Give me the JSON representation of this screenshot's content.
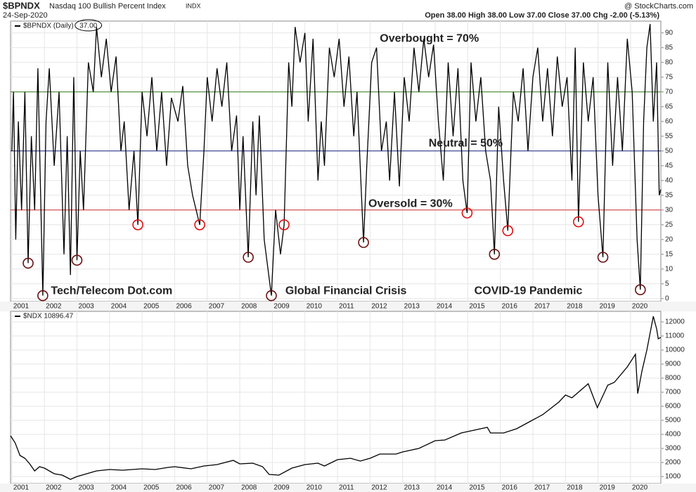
{
  "header": {
    "symbol": "$BPNDX",
    "name": "Nasdaq 100 Bullish Percent Index",
    "exchange": "INDX",
    "date": "24-Sep-2020",
    "source": "@ StockCharts.com",
    "quote": "Open 38.00  High 38.00  Low 37.00  Close 37.00  Chg -2.00 (-5.13%)"
  },
  "chart_data": [
    {
      "type": "line",
      "legend": "$BPNDX (Daily)",
      "last_label": "37.00",
      "color": "#000000",
      "xlim": [
        2000.96,
        2020.93
      ],
      "xticks": [
        2001,
        2002,
        2003,
        2004,
        2005,
        2006,
        2007,
        2008,
        2009,
        2010,
        2011,
        2012,
        2013,
        2014,
        2015,
        2016,
        2017,
        2018,
        2019,
        2020
      ],
      "ylim": [
        -1,
        94
      ],
      "yticks": [
        0,
        5,
        10,
        15,
        20,
        25,
        30,
        35,
        40,
        45,
        50,
        55,
        60,
        65,
        70,
        75,
        80,
        85,
        90
      ],
      "x": [
        2001.0,
        2001.05,
        2001.12,
        2001.2,
        2001.3,
        2001.4,
        2001.5,
        2001.6,
        2001.7,
        2001.8,
        2001.95,
        2002.05,
        2002.15,
        2002.3,
        2002.45,
        2002.6,
        2002.7,
        2002.8,
        2002.9,
        2003.0,
        2003.1,
        2003.2,
        2003.35,
        2003.5,
        2003.6,
        2003.75,
        2003.9,
        2004.05,
        2004.2,
        2004.35,
        2004.45,
        2004.6,
        2004.75,
        2004.87,
        2005.0,
        2005.15,
        2005.3,
        2005.45,
        2005.6,
        2005.75,
        2005.9,
        2006.1,
        2006.25,
        2006.4,
        2006.55,
        2006.77,
        2006.9,
        2007.0,
        2007.15,
        2007.3,
        2007.45,
        2007.6,
        2007.75,
        2007.9,
        2008.0,
        2008.1,
        2008.26,
        2008.4,
        2008.5,
        2008.6,
        2008.75,
        2008.97,
        2009.1,
        2009.25,
        2009.36,
        2009.5,
        2009.6,
        2009.7,
        2009.85,
        2010.0,
        2010.1,
        2010.25,
        2010.4,
        2010.5,
        2010.6,
        2010.75,
        2010.9,
        2011.05,
        2011.2,
        2011.35,
        2011.5,
        2011.6,
        2011.8,
        2011.9,
        2012.05,
        2012.2,
        2012.35,
        2012.5,
        2012.6,
        2012.75,
        2012.9,
        2013.05,
        2013.2,
        2013.35,
        2013.5,
        2013.65,
        2013.8,
        2013.95,
        2014.1,
        2014.25,
        2014.4,
        2014.55,
        2014.7,
        2014.85,
        2014.98,
        2015.1,
        2015.25,
        2015.4,
        2015.55,
        2015.7,
        2015.82,
        2015.95,
        2016.1,
        2016.23,
        2016.4,
        2016.55,
        2016.7,
        2016.85,
        2017.0,
        2017.15,
        2017.3,
        2017.45,
        2017.6,
        2017.75,
        2017.9,
        2018.05,
        2018.2,
        2018.3,
        2018.4,
        2018.55,
        2018.7,
        2018.85,
        2019.0,
        2019.15,
        2019.3,
        2019.45,
        2019.6,
        2019.75,
        2019.9,
        2020.05,
        2020.2,
        2020.3,
        2020.4,
        2020.5,
        2020.6,
        2020.7,
        2020.8,
        2020.88,
        2020.93
      ],
      "values": [
        50,
        70,
        20,
        60,
        30,
        70,
        12,
        55,
        30,
        78,
        1,
        60,
        78,
        45,
        70,
        15,
        55,
        8,
        75,
        13,
        50,
        30,
        80,
        70,
        92,
        75,
        88,
        70,
        82,
        50,
        60,
        30,
        50,
        25,
        70,
        55,
        75,
        50,
        70,
        45,
        68,
        60,
        72,
        45,
        35,
        25,
        50,
        75,
        60,
        78,
        65,
        80,
        50,
        62,
        30,
        55,
        14,
        60,
        35,
        62,
        20,
        1,
        30,
        15,
        25,
        80,
        65,
        92,
        80,
        90,
        60,
        88,
        40,
        60,
        45,
        85,
        75,
        88,
        65,
        82,
        55,
        70,
        19,
        45,
        80,
        85,
        50,
        60,
        40,
        70,
        38,
        75,
        60,
        85,
        70,
        88,
        75,
        86,
        60,
        40,
        80,
        55,
        78,
        40,
        29,
        80,
        60,
        75,
        50,
        40,
        15,
        65,
        40,
        23,
        70,
        60,
        78,
        50,
        75,
        85,
        60,
        78,
        55,
        82,
        65,
        75,
        40,
        85,
        26,
        80,
        60,
        75,
        35,
        14,
        80,
        45,
        75,
        50,
        88,
        70,
        20,
        3,
        60,
        85,
        93,
        60,
        80,
        35,
        37
      ],
      "reference_lines": [
        {
          "value": 70,
          "label": "Overbought = 70%",
          "color": "#2e7d1a",
          "label_color": "#3a6b12",
          "label_x": 2012.3,
          "label_y": 88
        },
        {
          "value": 50,
          "label": "Neutral = 50%",
          "color": "#1a237e",
          "label_color": "#1f4e9a",
          "label_x": 2013.8,
          "label_y": 52.5
        },
        {
          "value": 30,
          "label": "Oversold = 30%",
          "color": "#d32f2f",
          "label_color": "#e01010",
          "label_x": 2011.95,
          "label_y": 32
        }
      ],
      "circles": [
        {
          "x": 2001.5,
          "y": 12,
          "color": "#6b1010"
        },
        {
          "x": 2001.95,
          "y": 1,
          "color": "#6b1010"
        },
        {
          "x": 2003.0,
          "y": 13,
          "color": "#6b1010"
        },
        {
          "x": 2004.87,
          "y": 25,
          "color": "#e01010"
        },
        {
          "x": 2006.77,
          "y": 25,
          "color": "#e01010"
        },
        {
          "x": 2008.26,
          "y": 14,
          "color": "#6b1010"
        },
        {
          "x": 2008.97,
          "y": 1,
          "color": "#6b1010"
        },
        {
          "x": 2009.36,
          "y": 25,
          "color": "#e01010"
        },
        {
          "x": 2011.8,
          "y": 19,
          "color": "#6b1010"
        },
        {
          "x": 2014.98,
          "y": 29,
          "color": "#e01010"
        },
        {
          "x": 2015.82,
          "y": 15,
          "color": "#6b1010"
        },
        {
          "x": 2016.23,
          "y": 23,
          "color": "#e01010"
        },
        {
          "x": 2018.4,
          "y": 26,
          "color": "#e01010"
        },
        {
          "x": 2019.15,
          "y": 14,
          "color": "#6b1010"
        },
        {
          "x": 2020.3,
          "y": 3,
          "color": "#6b1010"
        }
      ],
      "annotations": [
        {
          "text": "Tech/Telecom Dot.com",
          "x": 2002.2,
          "y": 2.5
        },
        {
          "text": "Global Financial Crisis",
          "x": 2009.4,
          "y": 2.5
        },
        {
          "text": "COVID-19 Pandemic",
          "x": 2015.2,
          "y": 2.5
        }
      ]
    },
    {
      "type": "line",
      "legend": "$NDX 10896.47",
      "color": "#000000",
      "xlim": [
        2000.96,
        2020.93
      ],
      "xticks": [
        2001,
        2002,
        2003,
        2004,
        2005,
        2006,
        2007,
        2008,
        2009,
        2010,
        2011,
        2012,
        2013,
        2014,
        2015,
        2016,
        2017,
        2018,
        2019,
        2020
      ],
      "ylim": [
        500,
        12750
      ],
      "yticks": [
        1000,
        2000,
        3000,
        4000,
        5000,
        6000,
        7000,
        8000,
        9000,
        10000,
        11000,
        12000
      ],
      "x": [
        2000.96,
        2001.1,
        2001.25,
        2001.4,
        2001.55,
        2001.7,
        2001.85,
        2002.0,
        2002.3,
        2002.55,
        2002.8,
        2003.0,
        2003.3,
        2003.6,
        2004.0,
        2004.4,
        2004.7,
        2005.0,
        2005.4,
        2005.8,
        2006.0,
        2006.5,
        2006.9,
        2007.3,
        2007.8,
        2008.0,
        2008.4,
        2008.7,
        2008.9,
        2009.2,
        2009.6,
        2010.0,
        2010.4,
        2010.6,
        2011.0,
        2011.4,
        2011.7,
        2012.0,
        2012.3,
        2012.8,
        2013.0,
        2013.5,
        2014.0,
        2014.3,
        2014.8,
        2015.0,
        2015.6,
        2015.7,
        2016.1,
        2016.5,
        2016.9,
        2017.3,
        2017.8,
        2018.0,
        2018.2,
        2018.7,
        2018.98,
        2019.3,
        2019.5,
        2019.9,
        2020.15,
        2020.22,
        2020.35,
        2020.5,
        2020.7,
        2020.8,
        2020.85,
        2020.93
      ],
      "values": [
        3900,
        3400,
        2500,
        2300,
        1900,
        1400,
        1700,
        1600,
        1200,
        1100,
        800,
        1000,
        1200,
        1400,
        1500,
        1450,
        1500,
        1550,
        1500,
        1650,
        1700,
        1550,
        1750,
        1850,
        2150,
        1900,
        1950,
        1700,
        1150,
        1100,
        1600,
        1850,
        1950,
        1750,
        2200,
        2300,
        2100,
        2300,
        2600,
        2600,
        2750,
        3000,
        3550,
        3600,
        4100,
        4200,
        4500,
        4100,
        4100,
        4400,
        4900,
        5400,
        6300,
        6800,
        6600,
        7600,
        5900,
        7500,
        7700,
        8800,
        9700,
        6900,
        8500,
        10000,
        12400,
        11500,
        10800,
        10896
      ]
    }
  ]
}
